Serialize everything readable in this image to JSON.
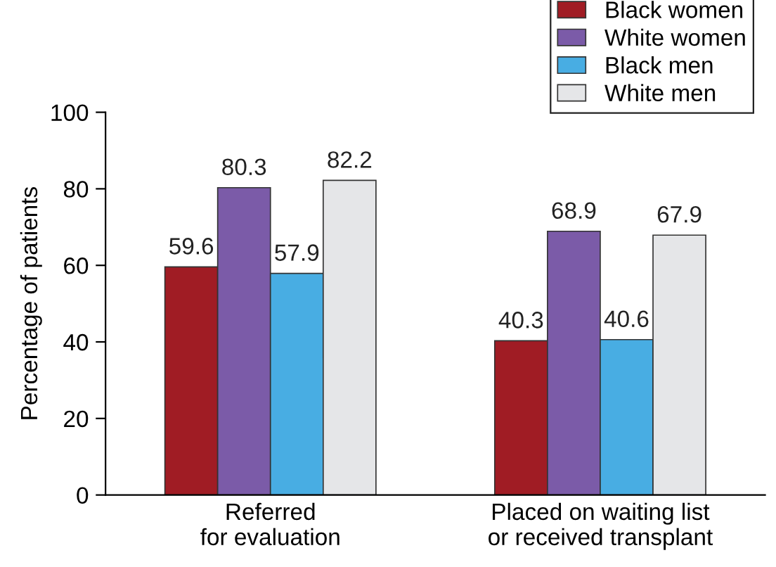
{
  "chart_data": {
    "type": "bar",
    "ylabel": "Percentage of patients",
    "categories": [
      "Referred\nfor evaluation",
      "Placed on waiting list\nor received transplant"
    ],
    "series": [
      {
        "name": "Black women",
        "color": "#a01c24",
        "values": [
          59.6,
          40.3
        ]
      },
      {
        "name": "White women",
        "color": "#7b5ba8",
        "values": [
          80.3,
          68.9
        ]
      },
      {
        "name": "Black men",
        "color": "#48ade3",
        "values": [
          57.9,
          40.6
        ]
      },
      {
        "name": "White men",
        "color": "#e5e6e8",
        "values": [
          82.2,
          67.9
        ]
      }
    ],
    "ylim": [
      0,
      100
    ],
    "yticks": [
      0,
      20,
      40,
      60,
      80,
      100
    ],
    "grid": false,
    "legend": "top right",
    "data_labels": true
  }
}
